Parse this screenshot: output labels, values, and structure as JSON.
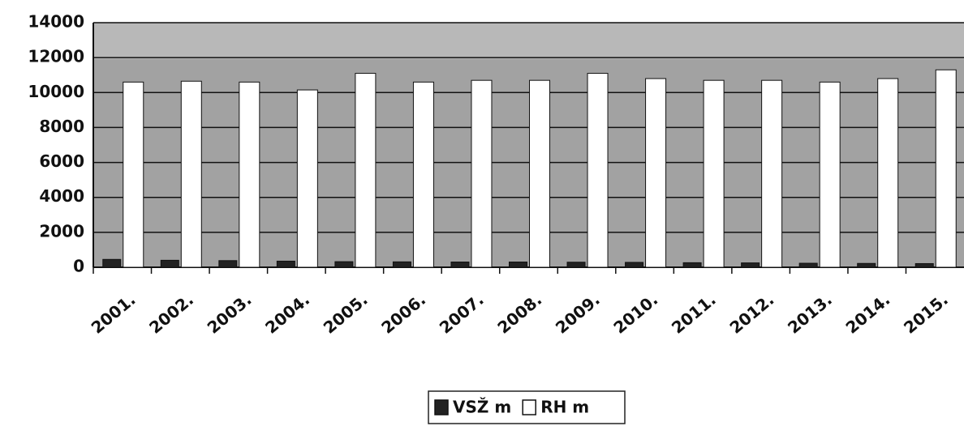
{
  "chart_data": {
    "type": "bar",
    "categories": [
      "2001.",
      "2002.",
      "2003.",
      "2004.",
      "2005.",
      "2006.",
      "2007.",
      "2008.",
      "2009.",
      "2010.",
      "2011.",
      "2012.",
      "2013.",
      "2014.",
      "2015."
    ],
    "series": [
      {
        "name": "VSŽ m",
        "color": "#222222",
        "values": [
          450,
          400,
          380,
          350,
          320,
          310,
          300,
          300,
          290,
          280,
          260,
          250,
          230,
          220,
          210
        ]
      },
      {
        "name": "RH m",
        "color": "#ffffff",
        "values": [
          10600,
          10650,
          10600,
          10150,
          11100,
          10600,
          10700,
          10700,
          11100,
          10800,
          10700,
          10700,
          10600,
          10800,
          11300
        ]
      }
    ],
    "ylim": [
      0,
      14000
    ],
    "yticks": [
      0,
      2000,
      4000,
      6000,
      8000,
      10000,
      12000,
      14000
    ],
    "grid": true,
    "legend": "bottom"
  }
}
